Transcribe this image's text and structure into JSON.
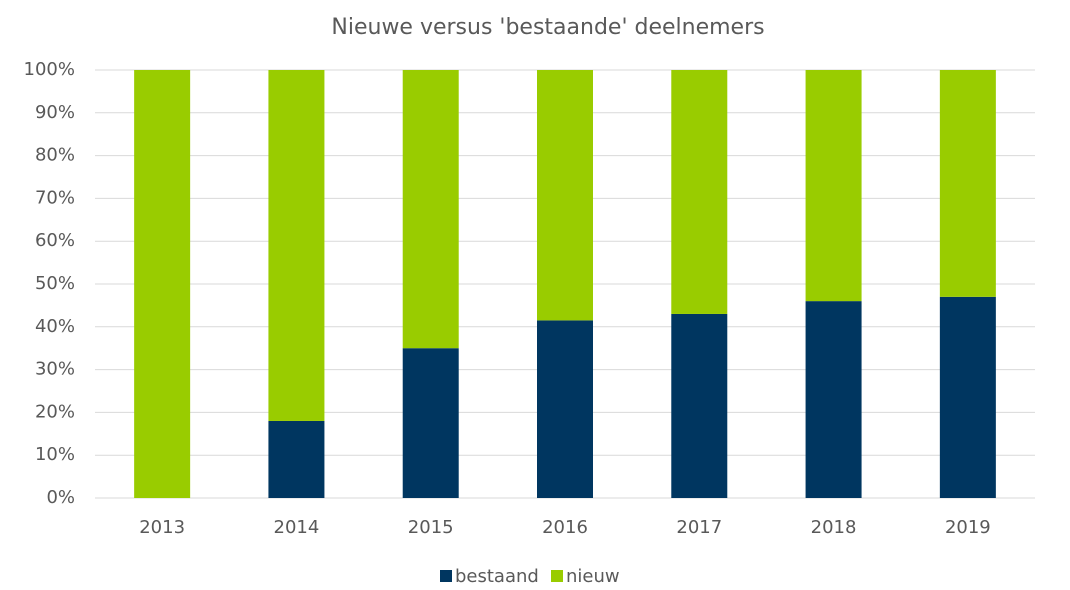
{
  "chart_data": {
    "type": "stacked_bar",
    "title": "Nieuwe versus 'bestaande' deelnemers",
    "categories": [
      "2013",
      "2014",
      "2015",
      "2016",
      "2017",
      "2018",
      "2019"
    ],
    "series": [
      {
        "name": "bestaand",
        "color": "#003660",
        "values": [
          0,
          18,
          35,
          41.5,
          43,
          46,
          47
        ]
      },
      {
        "name": "nieuw",
        "color": "#99cc00",
        "values": [
          100,
          82,
          65,
          58.5,
          57,
          54,
          53
        ]
      }
    ],
    "ylim": [
      0,
      100
    ],
    "yticks": [
      {
        "value": 0,
        "label": "0%"
      },
      {
        "value": 10,
        "label": "10%"
      },
      {
        "value": 20,
        "label": "20%"
      },
      {
        "value": 30,
        "label": "30%"
      },
      {
        "value": 40,
        "label": "40%"
      },
      {
        "value": 50,
        "label": "50%"
      },
      {
        "value": 60,
        "label": "60%"
      },
      {
        "value": 70,
        "label": "70%"
      },
      {
        "value": 80,
        "label": "80%"
      },
      {
        "value": 90,
        "label": "90%"
      },
      {
        "value": 100,
        "label": "100%"
      }
    ],
    "grid": true,
    "legend": "bottom"
  }
}
